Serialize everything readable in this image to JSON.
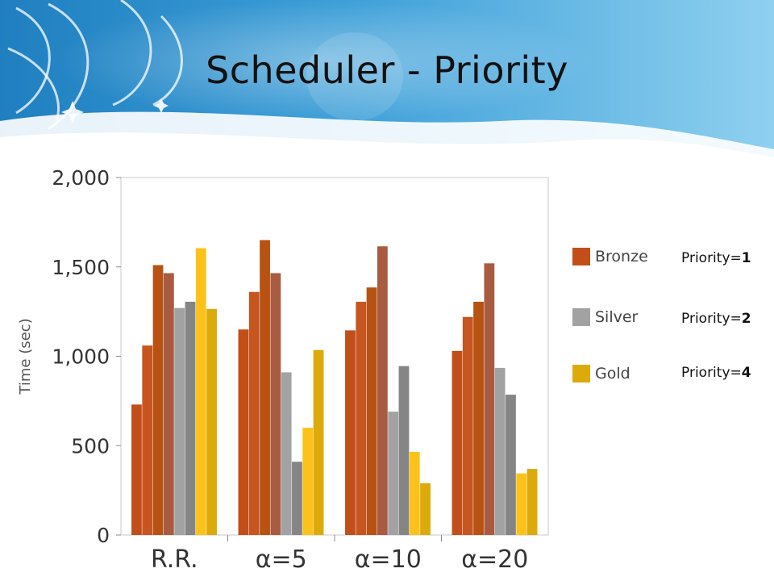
{
  "slide": {
    "title": "Scheduler - Priority"
  },
  "chart_data": {
    "type": "bar",
    "ylabel": "Time (sec)",
    "xlabel": "",
    "ylim": [
      0,
      2000
    ],
    "yticks": [
      "0",
      "500",
      "1,000",
      "1,500",
      "2,000"
    ],
    "ytick_values": [
      0,
      500,
      1000,
      1500,
      2000
    ],
    "grid": false,
    "categories": [
      "R.R.",
      "α=5",
      "α=10",
      "α=20"
    ],
    "groups": [
      {
        "category": "R.R.",
        "values": [
          730,
          1060,
          1510,
          1465,
          1270,
          1305,
          1605,
          1265
        ],
        "classes": [
          "Bronze",
          "Bronze",
          "Bronze",
          "Bronze",
          "Silver",
          "Silver",
          "Gold",
          "Gold"
        ]
      },
      {
        "category": "α=5",
        "values": [
          1150,
          1360,
          1650,
          1465,
          910,
          410,
          600,
          1035
        ],
        "classes": [
          "Bronze",
          "Bronze",
          "Bronze",
          "Bronze",
          "Silver",
          "Silver",
          "Gold",
          "Gold"
        ]
      },
      {
        "category": "α=10",
        "values": [
          1145,
          1305,
          1385,
          1615,
          690,
          945,
          465,
          290
        ],
        "classes": [
          "Bronze",
          "Bronze",
          "Bronze",
          "Bronze",
          "Silver",
          "Silver",
          "Gold",
          "Gold"
        ]
      },
      {
        "category": "α=20",
        "values": [
          1030,
          1220,
          1305,
          1520,
          935,
          785,
          345,
          370
        ],
        "classes": [
          "Bronze",
          "Bronze",
          "Bronze",
          "Bronze",
          "Silver",
          "Silver",
          "Gold",
          "Gold"
        ]
      }
    ],
    "series": [
      {
        "name": "Bronze",
        "color": "#c24e1a"
      },
      {
        "name": "Silver",
        "color": "#a2a2a2"
      },
      {
        "name": "Gold",
        "color": "#dcaa0a"
      }
    ],
    "bar_colors": [
      "#c24e1a",
      "#c65520",
      "#b85212",
      "#a85b40",
      "#a2a2a2",
      "#858585",
      "#fcc21a",
      "#dcaa0a"
    ],
    "legend_position": "right"
  },
  "annotations": {
    "priority_prefix": "Priority=",
    "items": [
      {
        "class": "Bronze",
        "value": "1"
      },
      {
        "class": "Silver",
        "value": "2"
      },
      {
        "class": "Gold",
        "value": "4"
      }
    ]
  }
}
